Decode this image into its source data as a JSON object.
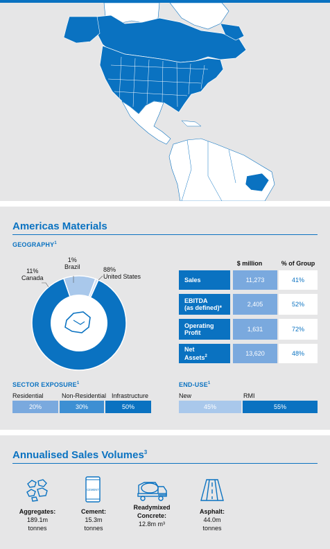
{
  "section": {
    "title": "Americas Materials"
  },
  "geography": {
    "heading": "GEOGRAPHY",
    "note": "1",
    "donut": [
      {
        "pct": "11%",
        "name": "Canada",
        "value": 11,
        "color": "#a9c8eb"
      },
      {
        "pct": "1%",
        "name": "Brazil",
        "value": 1,
        "color": "#cfe0f4"
      },
      {
        "pct": "88%",
        "name": "United States",
        "value": 88,
        "color": "#0a72c1"
      }
    ]
  },
  "table": {
    "col1": "$ million",
    "col2": "% of Group",
    "rows": [
      {
        "label": "Sales",
        "label_line2": "",
        "sup": "",
        "value": "11,273",
        "pct": "41%"
      },
      {
        "label": "EBITDA",
        "label_line2": "(as defined)*",
        "sup": "",
        "value": "2,405",
        "pct": "52%"
      },
      {
        "label": "Operating",
        "label_line2": "Profit",
        "sup": "",
        "value": "1,631",
        "pct": "72%"
      },
      {
        "label": "Net",
        "label_line2": "Assets",
        "sup": "2",
        "value": "13,620",
        "pct": "48%"
      }
    ]
  },
  "sector": {
    "heading": "SECTOR EXPOSURE",
    "note": "1",
    "items": [
      {
        "label": "Residential",
        "value": "20%",
        "color": "#7aa9de"
      },
      {
        "label": "Non-Residential",
        "value": "30%",
        "color": "#3d8fd3"
      },
      {
        "label": "Infrastructure",
        "value": "50%",
        "color": "#0a72c1"
      }
    ]
  },
  "enduse": {
    "heading": "END-USE",
    "note": "1",
    "items": [
      {
        "label": "New",
        "value": "45%",
        "color": "#a9c8eb"
      },
      {
        "label": "RMI",
        "value": "55%",
        "color": "#0a72c1"
      }
    ]
  },
  "volumes": {
    "title": "Annualised Sales Volumes",
    "note": "3",
    "items": [
      {
        "icon": "aggregates-icon",
        "name": "Aggregates:",
        "name2": "",
        "amount": "189.1m",
        "unit": "tonnes"
      },
      {
        "icon": "cement-bag-icon",
        "name": "Cement:",
        "name2": "",
        "amount": "15.3m",
        "unit": "tonnes"
      },
      {
        "icon": "concrete-mixer-icon",
        "name": "Readymixed",
        "name2": "Concrete:",
        "amount": "12.8m m³",
        "unit": ""
      },
      {
        "icon": "asphalt-road-icon",
        "name": "Asphalt:",
        "name2": "",
        "amount": "44.0m",
        "unit": "tonnes"
      }
    ],
    "cement_bag_text": "CEMENT"
  }
}
